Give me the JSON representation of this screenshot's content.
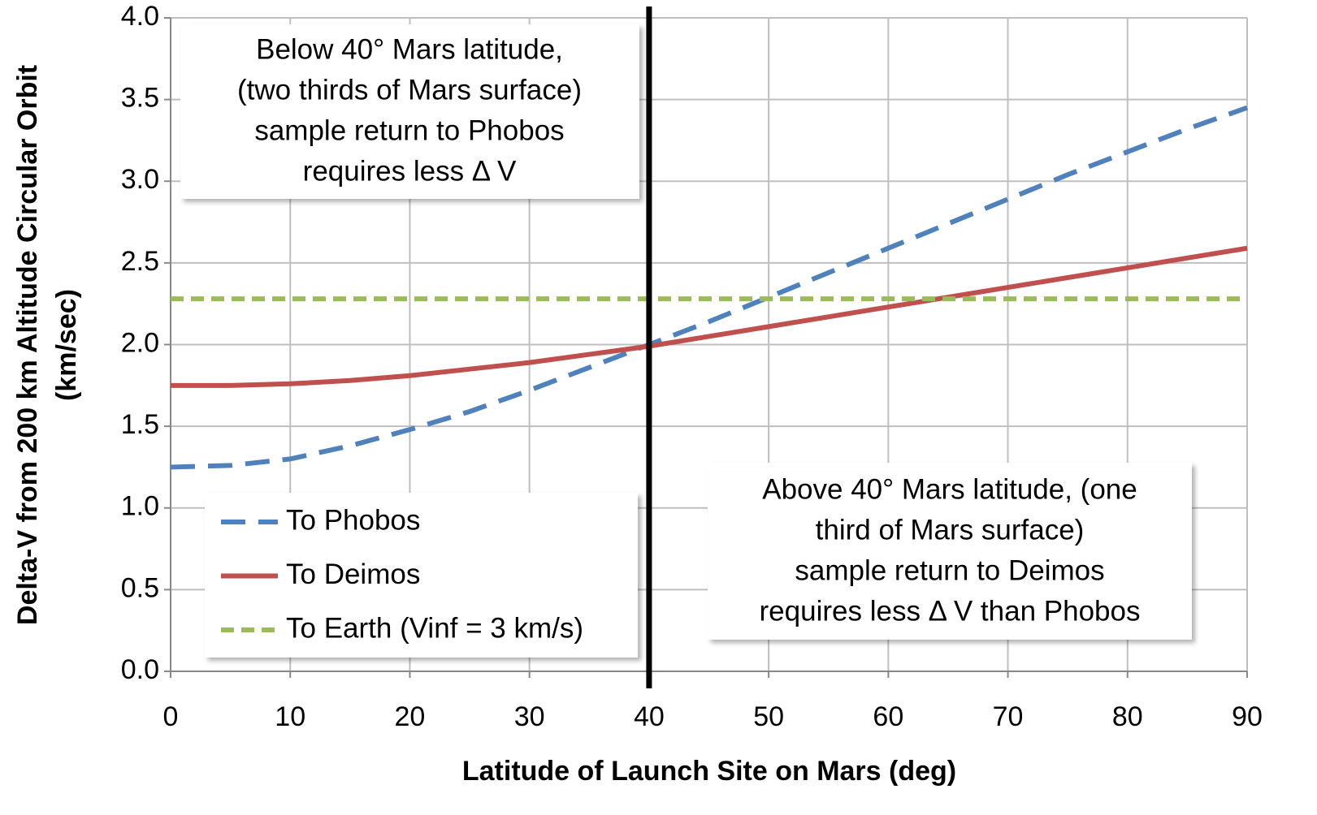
{
  "chart_data": {
    "type": "line",
    "x_label": "Latitude of Launch Site on Mars (deg)",
    "y_label": [
      "Delta-V from 200 km Altitude Circular Orbit",
      "(km/sec)"
    ],
    "x": [
      0,
      5,
      10,
      15,
      20,
      25,
      30,
      35,
      40,
      45,
      50,
      55,
      60,
      65,
      70,
      75,
      80,
      85,
      90
    ],
    "series": [
      {
        "name": "To Phobos",
        "color": "#4f81bd",
        "dash": "dashed",
        "values": [
          1.25,
          1.26,
          1.3,
          1.38,
          1.48,
          1.59,
          1.72,
          1.86,
          2.0,
          2.14,
          2.29,
          2.44,
          2.59,
          2.74,
          2.89,
          3.04,
          3.18,
          3.32,
          3.45
        ]
      },
      {
        "name": "To Deimos",
        "color": "#c0504d",
        "dash": "solid",
        "values": [
          1.75,
          1.75,
          1.76,
          1.78,
          1.81,
          1.85,
          1.89,
          1.94,
          1.99,
          2.05,
          2.11,
          2.17,
          2.23,
          2.29,
          2.35,
          2.41,
          2.47,
          2.53,
          2.59
        ]
      },
      {
        "name": "To Earth (Vinf = 3 km/s)",
        "color": "#9bbb59",
        "dash": "short-dashed",
        "values": [
          2.28,
          2.28,
          2.28,
          2.28,
          2.28,
          2.28,
          2.28,
          2.28,
          2.28,
          2.28,
          2.28,
          2.28,
          2.28,
          2.28,
          2.28,
          2.28,
          2.28,
          2.28,
          2.28
        ]
      }
    ],
    "xlim": [
      0,
      90
    ],
    "xticks": [
      0,
      10,
      20,
      30,
      40,
      50,
      60,
      70,
      80,
      90
    ],
    "ylim": [
      0,
      4
    ],
    "yticks": [
      {
        "value": 0,
        "label": "0.0"
      },
      {
        "value": 0.5,
        "label": "0.5"
      },
      {
        "value": 1,
        "label": "1.0"
      },
      {
        "value": 1.5,
        "label": "1.5"
      },
      {
        "value": 2,
        "label": "2.0"
      },
      {
        "value": 2.5,
        "label": "2.5"
      },
      {
        "value": 3,
        "label": "3.0"
      },
      {
        "value": 3.5,
        "label": "3.5"
      },
      {
        "value": 4,
        "label": "4.0"
      }
    ],
    "grid": true,
    "vline": {
      "x": 40,
      "color": "#000000"
    },
    "legend": "lower left",
    "annotations": [
      {
        "lines": [
          "Below 40° Mars latitude,",
          "(two thirds of Mars surface)",
          "sample return to Phobos",
          "requires less Δ V"
        ]
      },
      {
        "lines": [
          "Above 40° Mars latitude, (one",
          "third of Mars surface)",
          "sample return to Deimos",
          "requires less Δ V than Phobos"
        ]
      }
    ]
  }
}
